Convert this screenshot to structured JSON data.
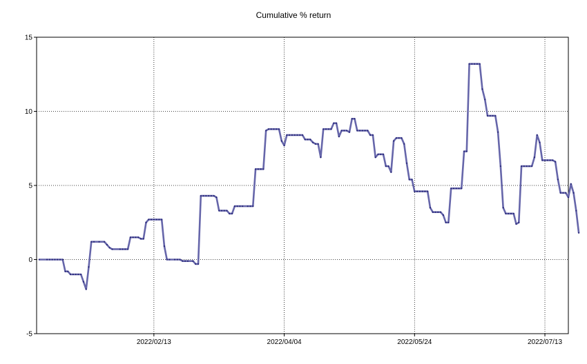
{
  "chart_data": {
    "type": "line",
    "title": "Cumulative % return",
    "xlabel": "",
    "ylabel": "",
    "ylim": [
      -5,
      15
    ],
    "y_ticks": [
      -5,
      0,
      5,
      10,
      15
    ],
    "x_ticks": [
      {
        "label": "2022/02/13",
        "date": "2022-02-13"
      },
      {
        "label": "2022/04/04",
        "date": "2022-04-04"
      },
      {
        "label": "2022/05/24",
        "date": "2022-05-24"
      },
      {
        "label": "2022/07/13",
        "date": "2022-07-13"
      }
    ],
    "xlim": [
      "2021-12-30",
      "2022-07-22"
    ],
    "grid": true,
    "line_color": "#6666aa",
    "marker_color": "#2a2a7a",
    "series": [
      {
        "points": [
          [
            "2021-12-31",
            0.0
          ],
          [
            "2022-01-03",
            0.0
          ],
          [
            "2022-01-04",
            0.0
          ],
          [
            "2022-01-05",
            0.0
          ],
          [
            "2022-01-06",
            0.0
          ],
          [
            "2022-01-07",
            0.0
          ],
          [
            "2022-01-08",
            0.0
          ],
          [
            "2022-01-09",
            0.0
          ],
          [
            "2022-01-10",
            -0.8
          ],
          [
            "2022-01-11",
            -0.8
          ],
          [
            "2022-01-12",
            -1.0
          ],
          [
            "2022-01-13",
            -1.0
          ],
          [
            "2022-01-14",
            -1.0
          ],
          [
            "2022-01-15",
            -1.0
          ],
          [
            "2022-01-16",
            -1.0
          ],
          [
            "2022-01-17",
            -1.5
          ],
          [
            "2022-01-18",
            -2.0
          ],
          [
            "2022-01-19",
            -0.5
          ],
          [
            "2022-01-20",
            1.2
          ],
          [
            "2022-01-21",
            1.2
          ],
          [
            "2022-01-23",
            1.2
          ],
          [
            "2022-01-25",
            1.2
          ],
          [
            "2022-01-26",
            1.0
          ],
          [
            "2022-01-27",
            0.8
          ],
          [
            "2022-01-28",
            0.7
          ],
          [
            "2022-01-31",
            0.7
          ],
          [
            "2022-02-01",
            0.7
          ],
          [
            "2022-02-02",
            0.7
          ],
          [
            "2022-02-03",
            0.7
          ],
          [
            "2022-02-04",
            1.5
          ],
          [
            "2022-02-05",
            1.5
          ],
          [
            "2022-02-06",
            1.5
          ],
          [
            "2022-02-07",
            1.5
          ],
          [
            "2022-02-08",
            1.4
          ],
          [
            "2022-02-09",
            1.4
          ],
          [
            "2022-02-10",
            2.5
          ],
          [
            "2022-02-11",
            2.7
          ],
          [
            "2022-02-12",
            2.7
          ],
          [
            "2022-02-13",
            2.7
          ],
          [
            "2022-02-14",
            2.7
          ],
          [
            "2022-02-15",
            2.7
          ],
          [
            "2022-02-16",
            2.7
          ],
          [
            "2022-02-17",
            0.9
          ],
          [
            "2022-02-18",
            0.0
          ],
          [
            "2022-02-19",
            0.0
          ],
          [
            "2022-02-21",
            0.0
          ],
          [
            "2022-02-22",
            0.0
          ],
          [
            "2022-02-23",
            0.0
          ],
          [
            "2022-02-24",
            -0.1
          ],
          [
            "2022-02-25",
            -0.1
          ],
          [
            "2022-02-26",
            -0.1
          ],
          [
            "2022-02-28",
            -0.1
          ],
          [
            "2022-03-01",
            -0.3
          ],
          [
            "2022-03-02",
            -0.3
          ],
          [
            "2022-03-03",
            4.3
          ],
          [
            "2022-03-04",
            4.3
          ],
          [
            "2022-03-05",
            4.3
          ],
          [
            "2022-03-06",
            4.3
          ],
          [
            "2022-03-07",
            4.3
          ],
          [
            "2022-03-08",
            4.3
          ],
          [
            "2022-03-09",
            4.2
          ],
          [
            "2022-03-10",
            3.3
          ],
          [
            "2022-03-11",
            3.3
          ],
          [
            "2022-03-12",
            3.3
          ],
          [
            "2022-03-13",
            3.3
          ],
          [
            "2022-03-14",
            3.1
          ],
          [
            "2022-03-15",
            3.1
          ],
          [
            "2022-03-16",
            3.6
          ],
          [
            "2022-03-17",
            3.6
          ],
          [
            "2022-03-18",
            3.6
          ],
          [
            "2022-03-19",
            3.6
          ],
          [
            "2022-03-21",
            3.6
          ],
          [
            "2022-03-22",
            3.6
          ],
          [
            "2022-03-23",
            3.6
          ],
          [
            "2022-03-24",
            6.1
          ],
          [
            "2022-03-25",
            6.1
          ],
          [
            "2022-03-26",
            6.1
          ],
          [
            "2022-03-27",
            6.1
          ],
          [
            "2022-03-28",
            8.7
          ],
          [
            "2022-03-29",
            8.8
          ],
          [
            "2022-03-30",
            8.8
          ],
          [
            "2022-03-31",
            8.8
          ],
          [
            "2022-04-01",
            8.8
          ],
          [
            "2022-04-02",
            8.8
          ],
          [
            "2022-04-03",
            8.0
          ],
          [
            "2022-04-04",
            7.7
          ],
          [
            "2022-04-05",
            8.4
          ],
          [
            "2022-04-06",
            8.4
          ],
          [
            "2022-04-07",
            8.4
          ],
          [
            "2022-04-08",
            8.4
          ],
          [
            "2022-04-09",
            8.4
          ],
          [
            "2022-04-10",
            8.4
          ],
          [
            "2022-04-11",
            8.4
          ],
          [
            "2022-04-12",
            8.1
          ],
          [
            "2022-04-13",
            8.1
          ],
          [
            "2022-04-14",
            8.1
          ],
          [
            "2022-04-15",
            7.9
          ],
          [
            "2022-04-16",
            7.8
          ],
          [
            "2022-04-17",
            7.8
          ],
          [
            "2022-04-18",
            6.9
          ],
          [
            "2022-04-19",
            8.8
          ],
          [
            "2022-04-20",
            8.8
          ],
          [
            "2022-04-21",
            8.8
          ],
          [
            "2022-04-22",
            8.8
          ],
          [
            "2022-04-23",
            9.2
          ],
          [
            "2022-04-24",
            9.2
          ],
          [
            "2022-04-25",
            8.3
          ],
          [
            "2022-04-26",
            8.7
          ],
          [
            "2022-04-27",
            8.7
          ],
          [
            "2022-04-28",
            8.7
          ],
          [
            "2022-04-29",
            8.6
          ],
          [
            "2022-04-30",
            9.5
          ],
          [
            "2022-05-01",
            9.5
          ],
          [
            "2022-05-02",
            8.7
          ],
          [
            "2022-05-03",
            8.7
          ],
          [
            "2022-05-04",
            8.7
          ],
          [
            "2022-05-05",
            8.7
          ],
          [
            "2022-05-06",
            8.7
          ],
          [
            "2022-05-07",
            8.4
          ],
          [
            "2022-05-08",
            8.4
          ],
          [
            "2022-05-09",
            6.9
          ],
          [
            "2022-05-10",
            7.1
          ],
          [
            "2022-05-11",
            7.1
          ],
          [
            "2022-05-12",
            7.1
          ],
          [
            "2022-05-13",
            6.3
          ],
          [
            "2022-05-14",
            6.3
          ],
          [
            "2022-05-15",
            5.9
          ],
          [
            "2022-05-16",
            8.0
          ],
          [
            "2022-05-17",
            8.2
          ],
          [
            "2022-05-18",
            8.2
          ],
          [
            "2022-05-19",
            8.2
          ],
          [
            "2022-05-20",
            7.8
          ],
          [
            "2022-05-21",
            6.5
          ],
          [
            "2022-05-22",
            5.4
          ],
          [
            "2022-05-23",
            5.4
          ],
          [
            "2022-05-24",
            4.6
          ],
          [
            "2022-05-25",
            4.6
          ],
          [
            "2022-05-26",
            4.6
          ],
          [
            "2022-05-27",
            4.6
          ],
          [
            "2022-05-28",
            4.6
          ],
          [
            "2022-05-29",
            4.6
          ],
          [
            "2022-05-30",
            3.5
          ],
          [
            "2022-05-31",
            3.2
          ],
          [
            "2022-06-01",
            3.2
          ],
          [
            "2022-06-02",
            3.2
          ],
          [
            "2022-06-03",
            3.2
          ],
          [
            "2022-06-04",
            3.0
          ],
          [
            "2022-06-05",
            2.5
          ],
          [
            "2022-06-06",
            2.5
          ],
          [
            "2022-06-07",
            4.8
          ],
          [
            "2022-06-08",
            4.8
          ],
          [
            "2022-06-09",
            4.8
          ],
          [
            "2022-06-10",
            4.8
          ],
          [
            "2022-06-11",
            4.8
          ],
          [
            "2022-06-12",
            7.3
          ],
          [
            "2022-06-13",
            7.3
          ],
          [
            "2022-06-14",
            13.2
          ],
          [
            "2022-06-15",
            13.2
          ],
          [
            "2022-06-16",
            13.2
          ],
          [
            "2022-06-17",
            13.2
          ],
          [
            "2022-06-18",
            13.2
          ],
          [
            "2022-06-19",
            11.5
          ],
          [
            "2022-06-20",
            10.8
          ],
          [
            "2022-06-21",
            9.7
          ],
          [
            "2022-06-22",
            9.7
          ],
          [
            "2022-06-23",
            9.7
          ],
          [
            "2022-06-24",
            9.7
          ],
          [
            "2022-06-25",
            8.6
          ],
          [
            "2022-06-26",
            6.3
          ],
          [
            "2022-06-27",
            3.5
          ],
          [
            "2022-06-28",
            3.1
          ],
          [
            "2022-06-29",
            3.1
          ],
          [
            "2022-06-30",
            3.1
          ],
          [
            "2022-07-01",
            3.1
          ],
          [
            "2022-07-02",
            2.4
          ],
          [
            "2022-07-03",
            2.5
          ],
          [
            "2022-07-04",
            6.3
          ],
          [
            "2022-07-05",
            6.3
          ],
          [
            "2022-07-06",
            6.3
          ],
          [
            "2022-07-07",
            6.3
          ],
          [
            "2022-07-08",
            6.3
          ],
          [
            "2022-07-09",
            6.9
          ],
          [
            "2022-07-10",
            8.4
          ],
          [
            "2022-07-11",
            7.9
          ],
          [
            "2022-07-12",
            6.7
          ],
          [
            "2022-07-13",
            6.7
          ],
          [
            "2022-07-14",
            6.7
          ],
          [
            "2022-07-15",
            6.7
          ],
          [
            "2022-07-16",
            6.7
          ],
          [
            "2022-07-17",
            6.6
          ],
          [
            "2022-07-18",
            5.4
          ],
          [
            "2022-07-19",
            4.5
          ],
          [
            "2022-07-20",
            4.5
          ],
          [
            "2022-07-21",
            4.5
          ],
          [
            "2022-07-22",
            4.2
          ],
          [
            "2022-07-23",
            5.1
          ],
          [
            "2022-07-24",
            4.5
          ],
          [
            "2022-07-25",
            3.3
          ],
          [
            "2022-07-26",
            1.8
          ]
        ]
      }
    ]
  }
}
